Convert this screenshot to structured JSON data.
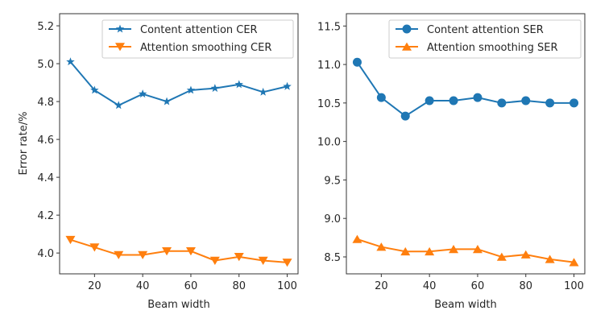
{
  "chart_data": [
    {
      "type": "line",
      "xlabel": "Beam width",
      "ylabel": "Error rate/%",
      "x": [
        10,
        20,
        30,
        40,
        50,
        60,
        70,
        80,
        90,
        100
      ],
      "xlim": [
        5.5,
        104.5
      ],
      "ylim": [
        3.89,
        5.264
      ],
      "xticks": [
        20,
        40,
        60,
        80,
        100
      ],
      "xtick_labels": [
        "20",
        "40",
        "60",
        "80",
        "100"
      ],
      "yticks": [
        4.0,
        4.2,
        4.4,
        4.6,
        4.8,
        5.0,
        5.2
      ],
      "ytick_labels": [
        "4.0",
        "4.2",
        "4.4",
        "4.6",
        "4.8",
        "5.0",
        "5.2"
      ],
      "grid": false,
      "legend_position": "top-right",
      "series": [
        {
          "name": "Content attention CER",
          "color": "#1f77b4",
          "marker": "star",
          "values": [
            5.01,
            4.86,
            4.78,
            4.84,
            4.8,
            4.86,
            4.87,
            4.89,
            4.85,
            4.88
          ]
        },
        {
          "name": "Attention smoothing CER",
          "color": "#ff7f0e",
          "marker": "triangle-down",
          "values": [
            4.07,
            4.03,
            3.99,
            3.99,
            4.01,
            4.01,
            3.96,
            3.98,
            3.96,
            3.95
          ]
        }
      ]
    },
    {
      "type": "line",
      "xlabel": "Beam width",
      "ylabel": "",
      "x": [
        10,
        20,
        30,
        40,
        50,
        60,
        70,
        80,
        90,
        100
      ],
      "xlim": [
        5.5,
        104.5
      ],
      "ylim": [
        8.28,
        11.66
      ],
      "xticks": [
        20,
        40,
        60,
        80,
        100
      ],
      "xtick_labels": [
        "20",
        "40",
        "60",
        "80",
        "100"
      ],
      "yticks": [
        8.5,
        9.0,
        9.5,
        10.0,
        10.5,
        11.0,
        11.5
      ],
      "ytick_labels": [
        "8.5",
        "9.0",
        "9.5",
        "10.0",
        "10.5",
        "11.0",
        "11.5"
      ],
      "grid": false,
      "legend_position": "top-right",
      "series": [
        {
          "name": "Content attention SER",
          "color": "#1f77b4",
          "marker": "circle",
          "values": [
            11.03,
            10.57,
            10.33,
            10.53,
            10.53,
            10.57,
            10.5,
            10.53,
            10.5,
            10.5
          ]
        },
        {
          "name": "Attention smoothing SER",
          "color": "#ff7f0e",
          "marker": "triangle-up",
          "values": [
            8.73,
            8.63,
            8.57,
            8.57,
            8.6,
            8.6,
            8.5,
            8.53,
            8.47,
            8.43
          ]
        }
      ]
    }
  ]
}
